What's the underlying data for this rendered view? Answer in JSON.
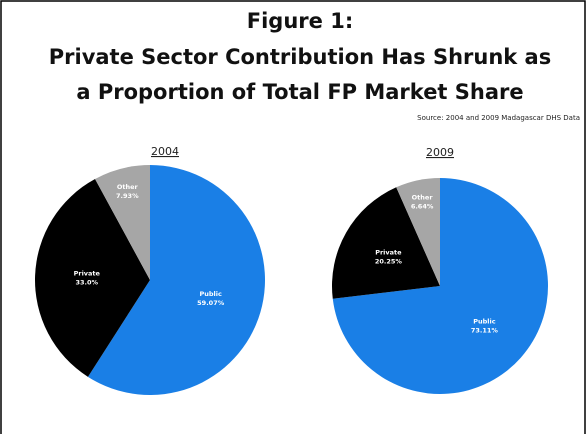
{
  "header": {
    "title_lines": [
      "Figure 1:",
      "Private Sector Contribution Has Shrunk as",
      "a Proportion of Total FP Market Share"
    ],
    "source": "Source: 2004 and 2009 Madagascar DHS Data"
  },
  "chart_data": [
    {
      "type": "pie",
      "title": "2004",
      "categories": [
        "Public",
        "Private",
        "Other"
      ],
      "values": [
        59.07,
        33.0,
        7.93
      ],
      "value_labels": [
        "59.07%",
        "33.0%",
        "7.93%"
      ],
      "colors": [
        "#1a7fe6",
        "#000000",
        "#a6a6a6"
      ]
    },
    {
      "type": "pie",
      "title": "2009",
      "categories": [
        "Public",
        "Private",
        "Other"
      ],
      "values": [
        73.11,
        20.25,
        6.64
      ],
      "value_labels": [
        "73.11%",
        "20.25%",
        "6.64%"
      ],
      "colors": [
        "#1a7fe6",
        "#000000",
        "#a6a6a6"
      ]
    }
  ]
}
